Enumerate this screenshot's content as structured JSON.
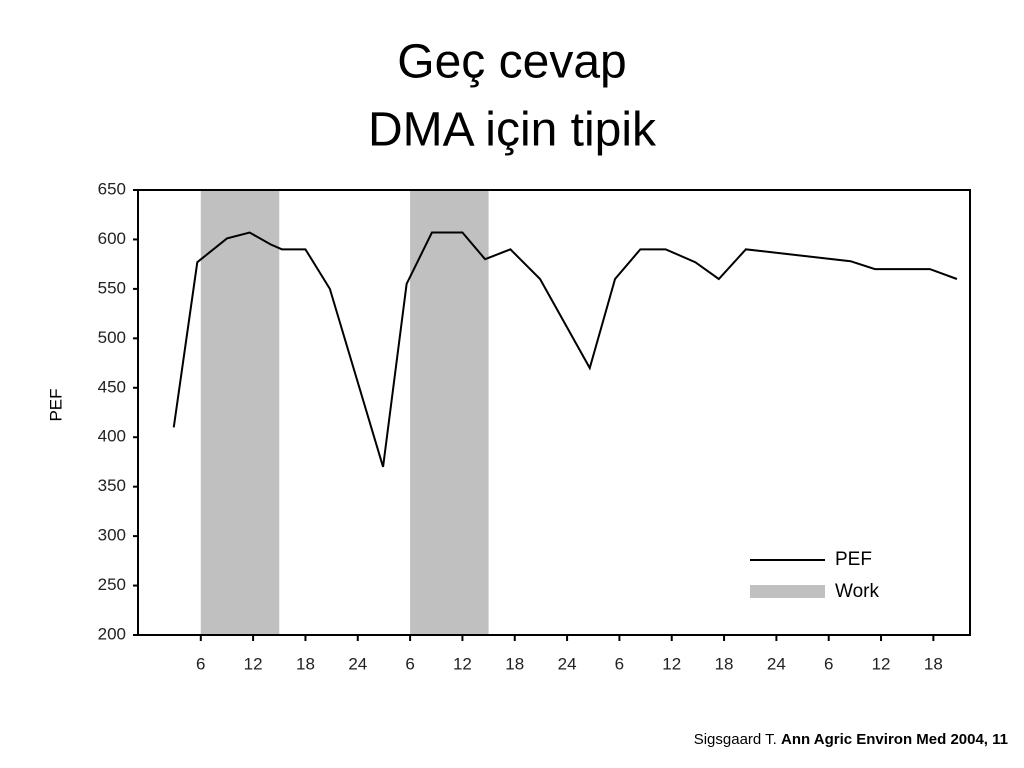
{
  "title": [
    "Geç cevap",
    "DMA için tipik"
  ],
  "chart_data": {
    "type": "line",
    "ylabel": "PEF",
    "x": [
      2.9,
      5.6,
      9,
      11.6,
      14,
      15.3,
      18,
      20.8,
      26.9,
      29.6,
      32.5,
      36,
      38.6,
      41.5,
      44.9,
      50.6,
      53.5,
      56.4,
      59.3,
      62.7,
      65.4,
      68.5,
      80.5,
      83.3,
      89.6,
      92.7
    ],
    "series": [
      {
        "name": "PEF",
        "color": "#000000",
        "values": [
          410,
          577,
          601,
          607,
          595,
          590,
          590,
          550,
          370,
          555,
          607,
          607,
          580,
          590,
          560,
          470,
          560,
          590,
          590,
          577,
          560,
          590,
          578,
          570,
          570,
          560
        ]
      }
    ],
    "shaded": {
      "name": "Work",
      "color": "#c0c0c0",
      "ranges": [
        [
          6,
          15
        ],
        [
          30,
          39
        ]
      ]
    },
    "xlim": [
      -1.2,
      94.2
    ],
    "xticks": [
      6,
      12,
      18,
      24,
      {
        "value": 30,
        "label": "6"
      },
      {
        "value": 36,
        "label": "12"
      },
      {
        "value": 42,
        "label": "18"
      },
      {
        "value": 48,
        "label": "24"
      },
      {
        "value": 54,
        "label": "6"
      },
      {
        "value": 60,
        "label": "12"
      },
      {
        "value": 66,
        "label": "18"
      },
      {
        "value": 72,
        "label": "24"
      },
      {
        "value": 78,
        "label": "6"
      },
      {
        "value": 84,
        "label": "12"
      },
      {
        "value": 90,
        "label": "18"
      }
    ],
    "ylim": [
      200,
      650
    ],
    "yticks": [
      200,
      250,
      300,
      350,
      400,
      450,
      500,
      550,
      600,
      650
    ]
  },
  "footer": {
    "author": "Sigsgaard T.",
    "source": "Ann Agric Environ Med 2004, 11"
  }
}
